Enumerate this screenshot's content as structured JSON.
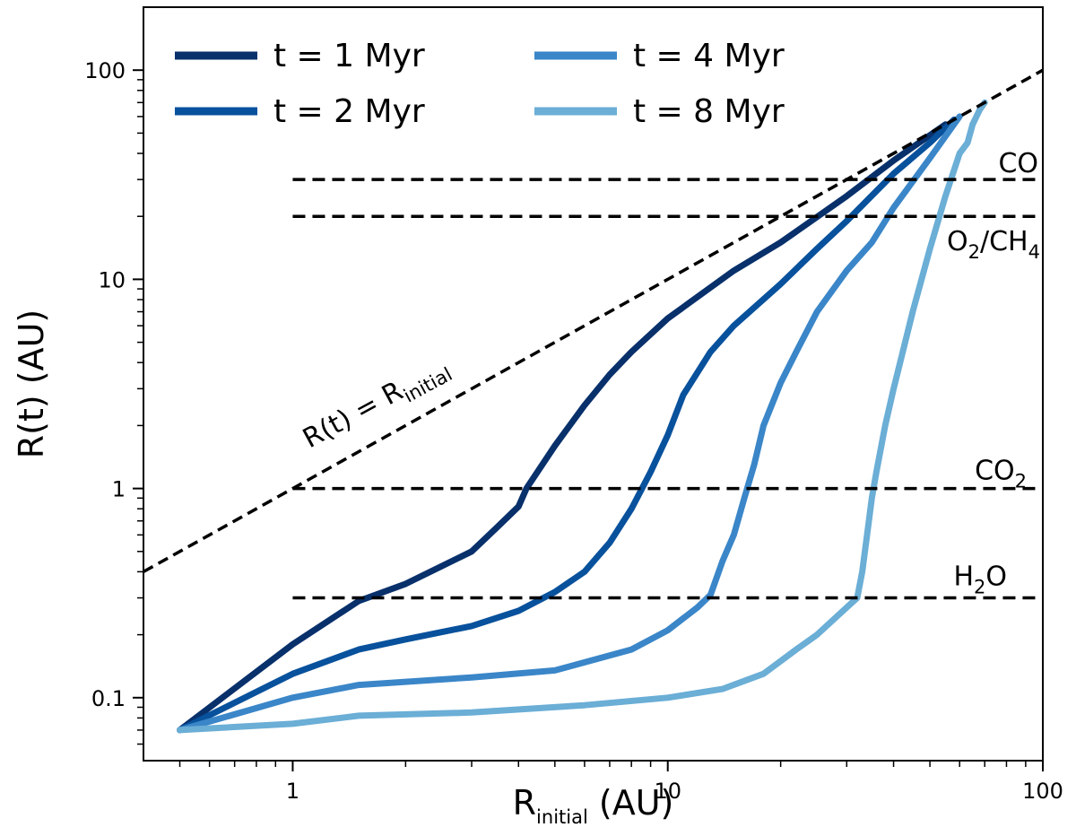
{
  "chart_data": {
    "type": "line",
    "xlabel": {
      "main": "R",
      "sub": "initial",
      "unit": " (AU)"
    },
    "ylabel": "R(t) (AU)",
    "xscale": "log",
    "yscale": "log",
    "xlim": [
      0.4,
      100
    ],
    "ylim": [
      0.05,
      200
    ],
    "x_ticks": [
      {
        "value": 1,
        "label": "1"
      },
      {
        "value": 10,
        "label": "10"
      },
      {
        "value": 100,
        "label": "100"
      }
    ],
    "y_ticks": [
      {
        "value": 0.1,
        "label": "0.1"
      },
      {
        "value": 1,
        "label": "1"
      },
      {
        "value": 10,
        "label": "10"
      },
      {
        "value": 100,
        "label": "100"
      }
    ],
    "legend": {
      "position": "upper-left",
      "columns": 2
    },
    "series": [
      {
        "name": "t = 1 Myr",
        "color": "#08306b",
        "x": [
          0.5,
          1,
          1.5,
          2,
          3,
          3.5,
          4,
          4.2,
          5,
          6,
          7,
          8,
          10,
          15,
          20,
          30,
          40,
          55
        ],
        "y": [
          0.07,
          0.18,
          0.29,
          0.35,
          0.5,
          0.65,
          0.82,
          1.0,
          1.6,
          2.5,
          3.5,
          4.5,
          6.5,
          11,
          15,
          25,
          37,
          55
        ]
      },
      {
        "name": "t = 2 Myr",
        "color": "#08519c",
        "x": [
          0.5,
          1,
          1.5,
          2,
          3,
          4,
          5,
          6,
          7,
          8,
          9,
          10,
          11,
          13,
          15,
          20,
          25,
          30,
          40,
          50,
          58
        ],
        "y": [
          0.07,
          0.13,
          0.17,
          0.19,
          0.22,
          0.26,
          0.32,
          0.4,
          0.55,
          0.8,
          1.2,
          1.8,
          2.8,
          4.5,
          6.0,
          9.5,
          14,
          19,
          32,
          45,
          58
        ]
      },
      {
        "name": "t = 4 Myr",
        "color": "#3a86c8",
        "x": [
          0.5,
          1,
          1.5,
          3,
          5,
          8,
          10,
          12,
          13,
          14,
          15,
          16,
          17,
          18,
          20,
          22,
          25,
          30,
          35,
          40,
          50,
          60
        ],
        "y": [
          0.07,
          0.1,
          0.115,
          0.125,
          0.135,
          0.17,
          0.21,
          0.27,
          0.31,
          0.45,
          0.6,
          0.9,
          1.3,
          2.0,
          3.2,
          4.5,
          7.0,
          11,
          15,
          22,
          38,
          60
        ]
      },
      {
        "name": "t = 8 Myr",
        "color": "#6baed6",
        "x": [
          0.5,
          1,
          1.5,
          3,
          6,
          10,
          14,
          18,
          22,
          25,
          30,
          32,
          33,
          34,
          35,
          36,
          38,
          40,
          45,
          50,
          55,
          60,
          63,
          65,
          68,
          70
        ],
        "y": [
          0.07,
          0.075,
          0.082,
          0.085,
          0.092,
          0.1,
          0.11,
          0.13,
          0.17,
          0.2,
          0.27,
          0.3,
          0.4,
          0.6,
          0.9,
          1.2,
          2.0,
          3.0,
          7.0,
          14,
          25,
          40,
          45,
          55,
          65,
          70
        ]
      }
    ],
    "reference_lines": [
      {
        "label": "R(t) = R",
        "label_sub": "initial",
        "x_range": [
          0.4,
          100
        ],
        "equation": "y = x"
      },
      {
        "label": "CO",
        "y": 30,
        "x_range": [
          1,
          100
        ]
      },
      {
        "label": "O",
        "label_sub": "2",
        "label_mid": "/CH",
        "label_sub2": "4",
        "y": 20,
        "x_range": [
          1,
          100
        ]
      },
      {
        "label": "CO",
        "label_sub": "2",
        "y": 1,
        "x_range": [
          1,
          100
        ]
      },
      {
        "label": "H",
        "label_sub": "2",
        "label_mid": "O",
        "y": 0.3,
        "x_range": [
          1,
          100
        ]
      }
    ]
  }
}
